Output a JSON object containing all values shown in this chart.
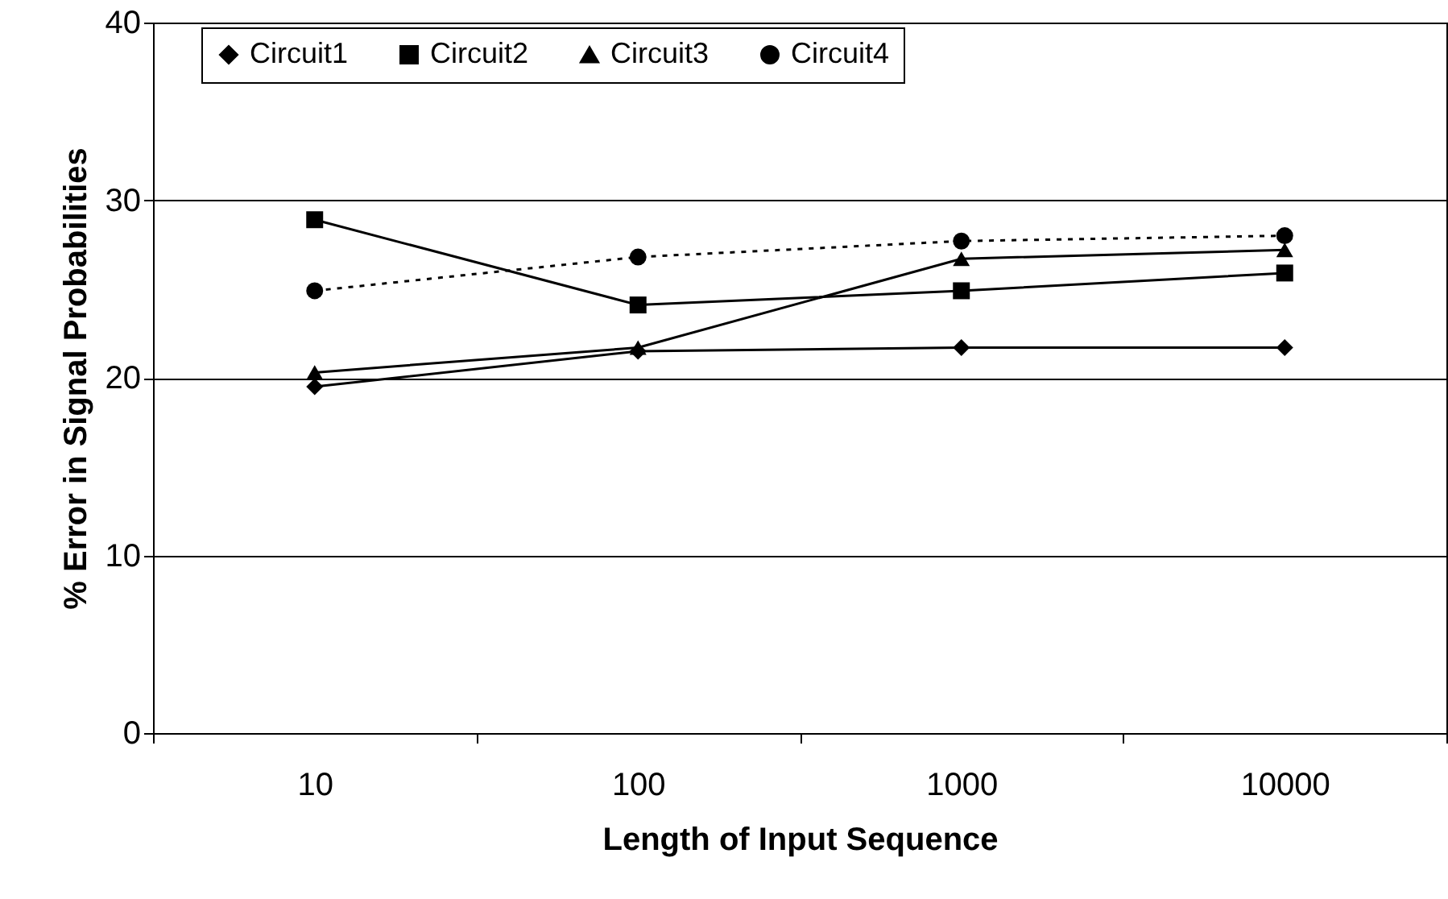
{
  "chart_data": {
    "type": "line",
    "xlabel": "Length of Input Sequence",
    "ylabel": "% Error in Signal Probabilities",
    "categories": [
      "10",
      "100",
      "1000",
      "10000"
    ],
    "ylim": [
      0,
      40
    ],
    "yticks": [
      0,
      10,
      20,
      30,
      40
    ],
    "grid": "y",
    "legend": "top",
    "series": [
      {
        "name": "Circuit1",
        "color": "#000000",
        "marker": "diamond",
        "line_style": "solid",
        "values": [
          19.5,
          21.5,
          21.7,
          21.7
        ]
      },
      {
        "name": "Circuit2",
        "color": "#000000",
        "marker": "square",
        "line_style": "solid",
        "values": [
          28.9,
          24.1,
          24.9,
          25.9
        ]
      },
      {
        "name": "Circuit3",
        "color": "#000000",
        "marker": "triangle",
        "line_style": "solid",
        "values": [
          20.3,
          21.7,
          26.7,
          27.2
        ]
      },
      {
        "name": "Circuit4",
        "color": "#000000",
        "marker": "circle",
        "line_style": "dotted",
        "values": [
          24.9,
          26.8,
          27.7,
          28.0
        ]
      }
    ]
  }
}
